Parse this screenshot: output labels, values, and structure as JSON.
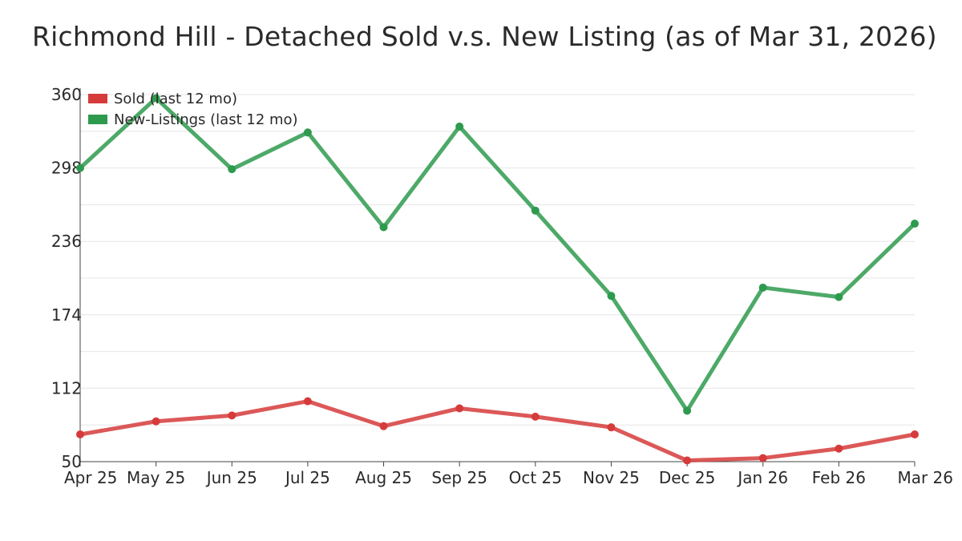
{
  "page": {
    "title": "Richmond Hill - Detached Sold v.s. New Listing (as of Mar 31, 2026)"
  },
  "chart_data": {
    "type": "line",
    "title": "Richmond Hill - Detached Sold v.s. New Listing (as of Mar 31, 2026)",
    "xlabel": "",
    "ylabel": "",
    "categories": [
      "Apr 25",
      "May 25",
      "Jun 25",
      "Jul 25",
      "Aug 25",
      "Sep 25",
      "Oct 25",
      "Nov 25",
      "Dec 25",
      "Jan 26",
      "Feb 26",
      "Mar 26"
    ],
    "y_ticks": [
      360,
      298,
      236,
      174,
      112,
      50
    ],
    "ylim": [
      50,
      360
    ],
    "grid": true,
    "legend_position": "top-left",
    "series": [
      {
        "name": "Sold (last 12 mo)",
        "color": "#d63b3b",
        "values": [
          73,
          84,
          89,
          101,
          80,
          95,
          88,
          79,
          51,
          53,
          61,
          73
        ]
      },
      {
        "name": "New-Listings (last 12 mo)",
        "color": "#2e9a4e",
        "values": [
          298,
          357,
          297,
          328,
          248,
          333,
          262,
          190,
          93,
          197,
          189,
          251
        ]
      }
    ]
  }
}
